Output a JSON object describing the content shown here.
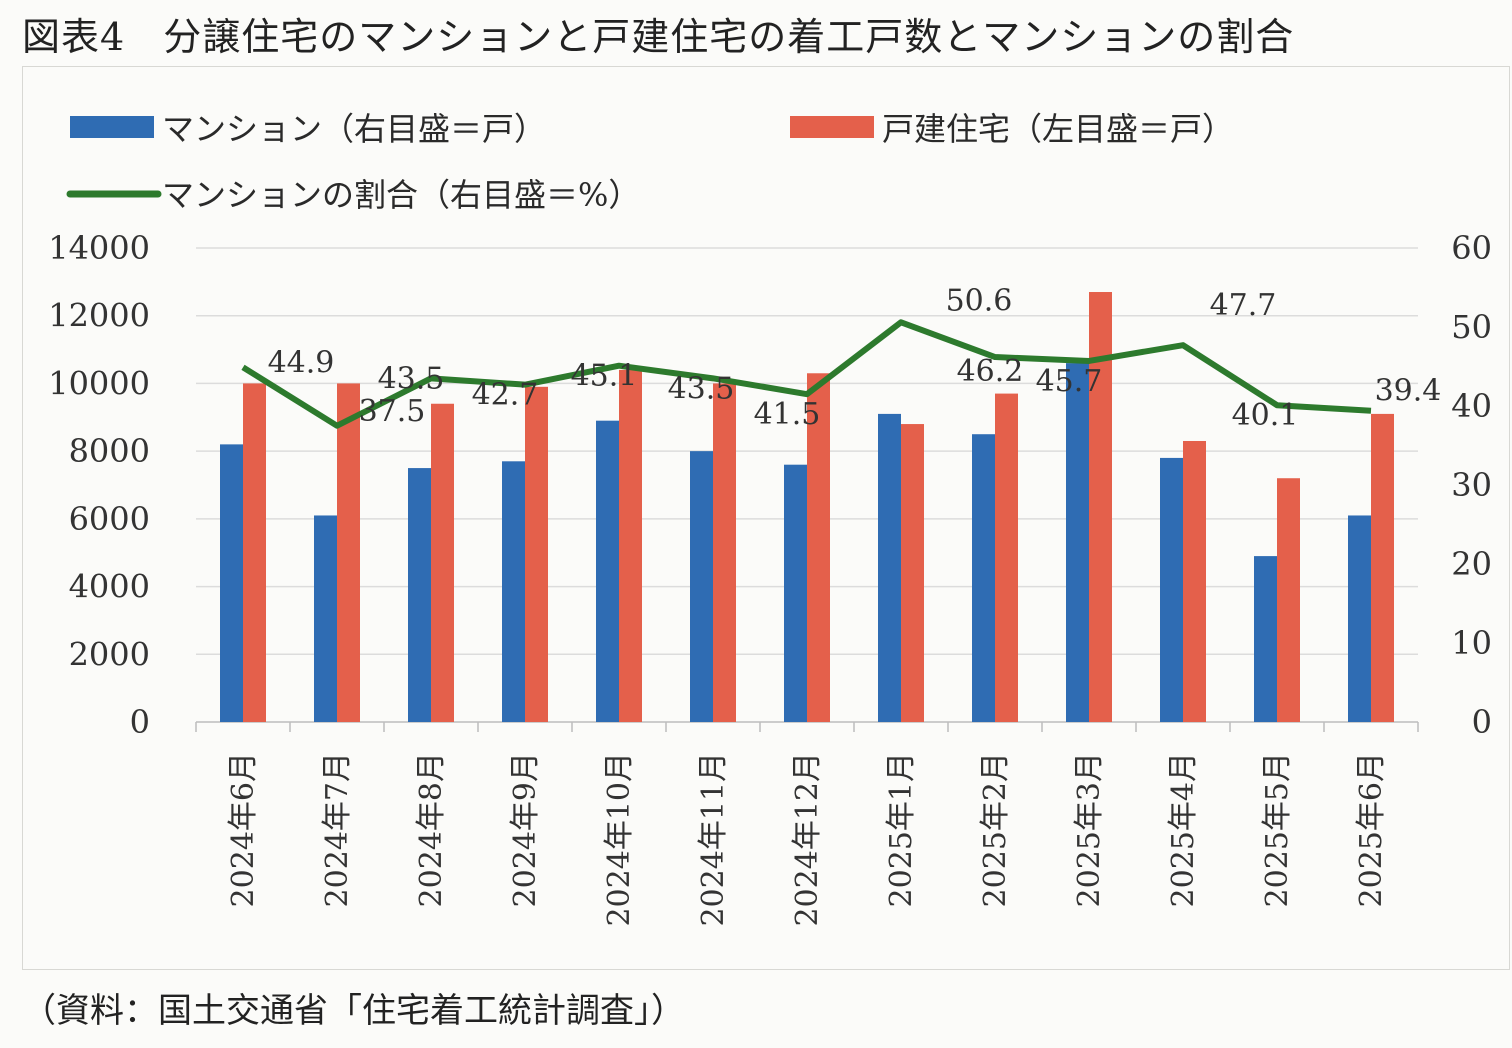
{
  "figure": {
    "number": "図表4",
    "title": "分譲住宅のマンションと戸建住宅の着工戸数とマンションの割合",
    "source": "（資料：国土交通省「住宅着工統計調査」）"
  },
  "chart_data": {
    "type": "bar",
    "categories": [
      "2024年6月",
      "2024年7月",
      "2024年8月",
      "2024年9月",
      "2024年10月",
      "2024年11月",
      "2024年12月",
      "2025年1月",
      "2025年2月",
      "2025年3月",
      "2025年4月",
      "2025年5月",
      "2025年6月"
    ],
    "series": [
      {
        "name": "マンション（右目盛＝戸）",
        "type": "bar",
        "axis": "left",
        "color": "#2f6cb3",
        "values": [
          8200,
          6100,
          7500,
          7700,
          8900,
          8000,
          7600,
          9100,
          8500,
          10600,
          7800,
          4900,
          6100
        ]
      },
      {
        "name": "戸建住宅（左目盛＝戸）",
        "type": "bar",
        "axis": "left",
        "color": "#e4604b",
        "values": [
          10000,
          10000,
          9400,
          9900,
          10400,
          10000,
          10300,
          8800,
          9700,
          12700,
          8300,
          7200,
          9100
        ]
      },
      {
        "name": "マンションの割合（右目盛＝%）",
        "type": "line",
        "axis": "right",
        "color": "#2d7a2d",
        "values": [
          44.9,
          37.5,
          43.5,
          42.7,
          45.1,
          43.5,
          41.5,
          50.6,
          46.2,
          45.7,
          47.7,
          40.1,
          39.4
        ],
        "labels": [
          "44.9",
          "37.5",
          "43.5",
          "42.7",
          "45.1",
          "43.5",
          "41.5",
          "50.6",
          "46.2",
          "45.7",
          "47.7",
          "40.1",
          "39.4"
        ]
      }
    ],
    "y_left": {
      "min": 0,
      "max": 14000,
      "ticks": [
        "0",
        "2000",
        "4000",
        "6000",
        "8000",
        "10000",
        "12000",
        "14000"
      ]
    },
    "y_right": {
      "min": 0,
      "max": 60,
      "ticks": [
        "0",
        "10",
        "20",
        "30",
        "40",
        "50",
        "60"
      ]
    },
    "grid": true,
    "legend": "top-left"
  }
}
